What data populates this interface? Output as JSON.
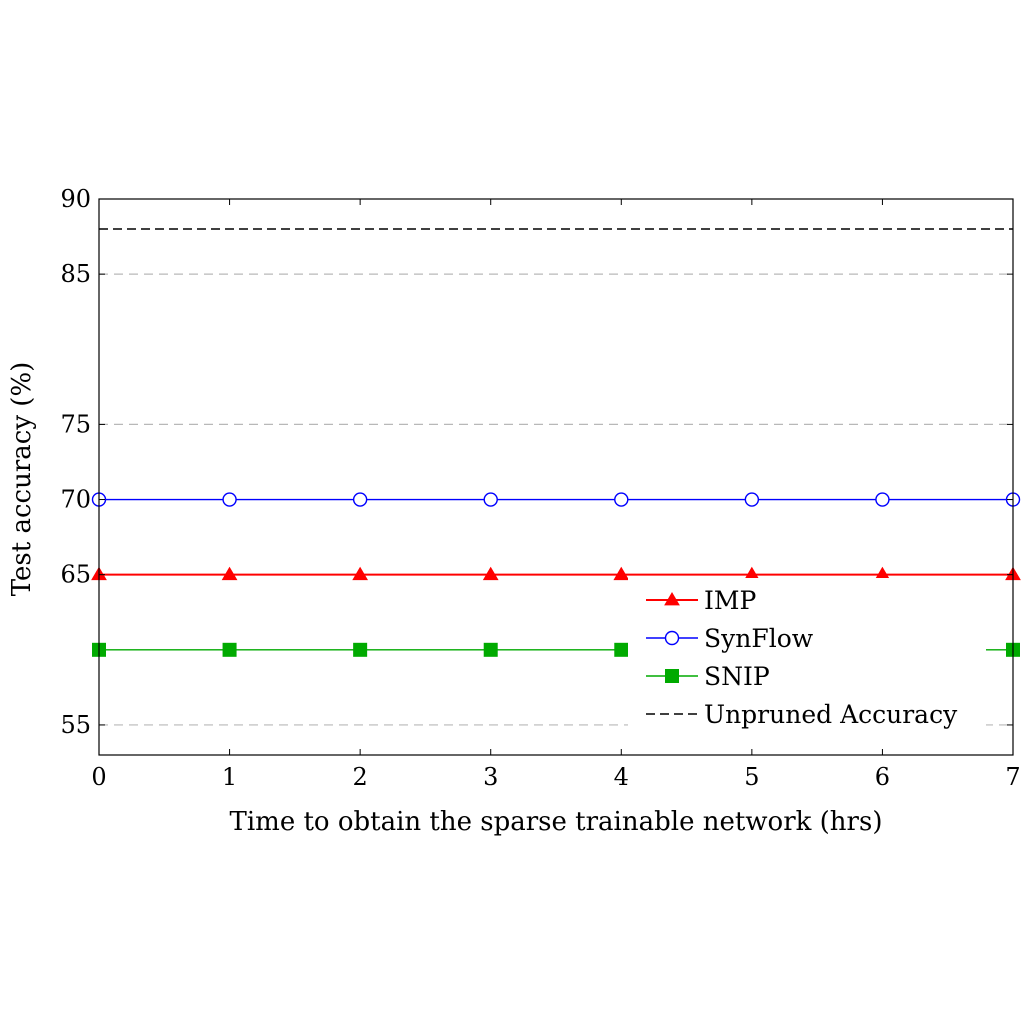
{
  "chart_data": {
    "type": "line",
    "xlabel": "Time to obtain the sparse trainable network (hrs)",
    "ylabel": "Test accuracy (%)",
    "xlim": [
      0,
      7
    ],
    "ylim": [
      53,
      90
    ],
    "xticks": [
      0,
      1,
      2,
      3,
      4,
      5,
      6,
      7
    ],
    "yticks": [
      55,
      65,
      70,
      75,
      85,
      90
    ],
    "grid_y": [
      55,
      75,
      85
    ],
    "legend_position": "bottom-right",
    "x": [
      0,
      1,
      2,
      3,
      4,
      5,
      6,
      7
    ],
    "series": [
      {
        "name": "IMP",
        "color": "#ff0000",
        "marker": "triangle",
        "values": [
          65,
          65,
          65,
          65,
          65,
          65,
          65,
          65
        ]
      },
      {
        "name": "SynFlow",
        "color": "#0000ff",
        "marker": "circle-open",
        "values": [
          70,
          70,
          70,
          70,
          70,
          70,
          70,
          70
        ]
      },
      {
        "name": "SNIP",
        "color": "#00aa00",
        "marker": "square",
        "values": [
          60,
          60,
          60,
          60,
          60,
          60,
          60,
          60
        ]
      }
    ],
    "reference_line": {
      "name": "Unpruned Accuracy",
      "color": "#000000",
      "style": "dashed",
      "value": 88
    }
  }
}
